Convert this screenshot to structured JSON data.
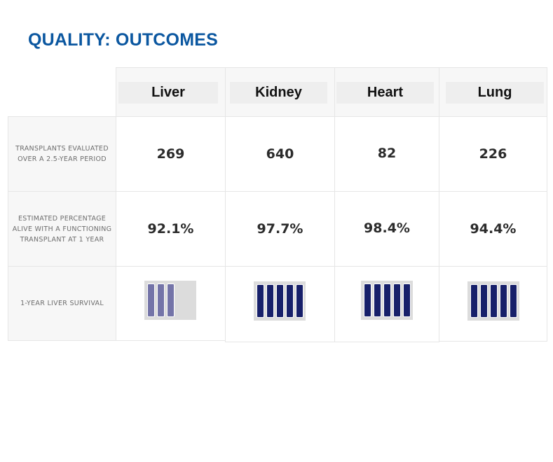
{
  "title": "QUALITY: OUTCOMES",
  "columns": [
    "Liver",
    "Kidney",
    "Heart",
    "Lung"
  ],
  "rows": [
    {
      "label": "TRANSPLANTS EVALUATED OVER A 2.5-YEAR PERIOD",
      "values": [
        "269",
        "640",
        "82",
        "226"
      ]
    },
    {
      "label": "ESTIMATED PERCENTAGE ALIVE WITH A FUNCTIONING TRANSPLANT AT 1 YEAR",
      "values": [
        "92.1%",
        "97.7%",
        "98.4%",
        "94.4%"
      ]
    },
    {
      "label": "1-YEAR LIVER SURVIVAL",
      "gauges": [
        {
          "organ": "Liver",
          "filled_bars": 3,
          "total_bars": 5,
          "fill_color": "#7474a8"
        },
        {
          "organ": "Kidney",
          "filled_bars": 5,
          "total_bars": 5,
          "fill_color": "#17206a"
        },
        {
          "organ": "Heart",
          "filled_bars": 5,
          "total_bars": 5,
          "fill_color": "#17206a"
        },
        {
          "organ": "Lung",
          "filled_bars": 5,
          "total_bars": 5,
          "fill_color": "#17206a"
        }
      ]
    }
  ],
  "colors": {
    "title": "#0b57a0",
    "gauge_background": "#dcdcdc",
    "gauge_empty": "#dcdcdc"
  }
}
